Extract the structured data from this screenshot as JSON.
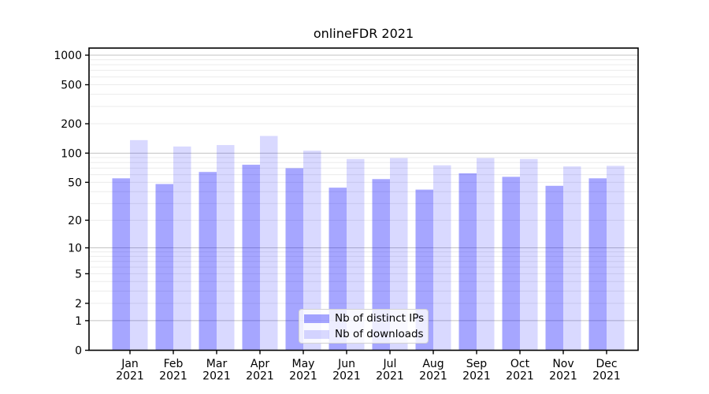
{
  "chart_data": {
    "type": "bar",
    "title": "onlineFDR 2021",
    "categories": [
      "Jan 2021",
      "Feb 2021",
      "Mar 2021",
      "Apr 2021",
      "May 2021",
      "Jun 2021",
      "Jul 2021",
      "Aug 2021",
      "Sep 2021",
      "Oct 2021",
      "Nov 2021",
      "Dec 2021"
    ],
    "x_tick_labels": [
      [
        "Jan",
        "2021"
      ],
      [
        "Feb",
        "2021"
      ],
      [
        "Mar",
        "2021"
      ],
      [
        "Apr",
        "2021"
      ],
      [
        "May",
        "2021"
      ],
      [
        "Jun",
        "2021"
      ],
      [
        "Jul",
        "2021"
      ],
      [
        "Aug",
        "2021"
      ],
      [
        "Sep",
        "2021"
      ],
      [
        "Oct",
        "2021"
      ],
      [
        "Nov",
        "2021"
      ],
      [
        "Dec",
        "2021"
      ]
    ],
    "series": [
      {
        "name": "Nb of distinct IPs",
        "color": "rgba(0,0,255,0.35)",
        "values": [
          55,
          48,
          64,
          76,
          70,
          44,
          54,
          42,
          62,
          57,
          46,
          55
        ]
      },
      {
        "name": "Nb of downloads",
        "color": "rgba(0,0,255,0.15)",
        "values": [
          136,
          117,
          121,
          150,
          106,
          87,
          89,
          75,
          89,
          87,
          73,
          74
        ]
      }
    ],
    "yscale": "log1p",
    "y_ticks": [
      0,
      1,
      2,
      5,
      10,
      20,
      50,
      100,
      200,
      500,
      1000
    ],
    "y_tick_labels": [
      "0",
      "1",
      "2",
      "5",
      "10",
      "20",
      "50",
      "100",
      "200",
      "500",
      "1000"
    ],
    "y_major_gridlines": [
      1,
      10,
      100,
      1000
    ],
    "ylim": [
      0,
      1180
    ],
    "xlabel": "",
    "ylabel": "",
    "grid": "horizontal (major + minor)",
    "legend_position": "lower center"
  },
  "legend": {
    "items": [
      {
        "label": "Nb of distinct IPs",
        "color": "rgba(0,0,255,0.35)"
      },
      {
        "label": "Nb of downloads",
        "color": "rgba(0,0,255,0.15)"
      }
    ]
  },
  "colors": {
    "background": "#ffffff",
    "axis": "#000000",
    "major_grid": "#c3c3c3",
    "minor_grid": "#ececec",
    "legend_border": "#d2d2d2",
    "legend_background": "rgba(255,255,255,0.8)"
  }
}
